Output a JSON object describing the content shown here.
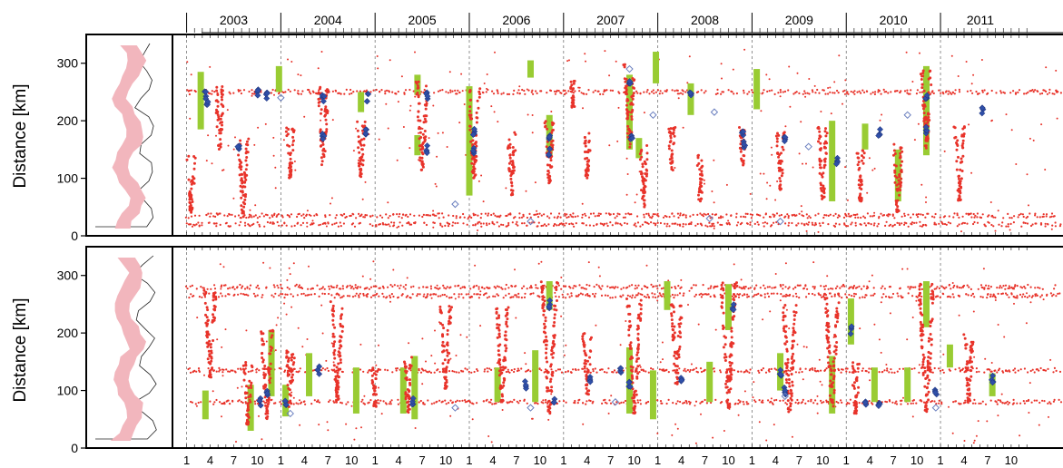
{
  "chart_data": [
    {
      "type": "scatter",
      "panel": "upper",
      "ylabel": "Distance [km]",
      "ylim": [
        0,
        350
      ],
      "yticks": [
        0,
        100,
        200,
        300
      ],
      "x_range_years": [
        2002.85,
        2012.3
      ],
      "years": [
        "2003",
        "2004",
        "2005",
        "2006",
        "2007",
        "2008",
        "2009",
        "2010",
        "2011"
      ],
      "series": [
        {
          "marker": "red-dot",
          "color": "#e8332a",
          "episodes": [
            {
              "t": 2003.05,
              "y0": 40,
              "y1": 140
            },
            {
              "t": 2003.35,
              "y0": 150,
              "y1": 260
            },
            {
              "t": 2003.6,
              "y0": 30,
              "y1": 170
            },
            {
              "t": 2004.1,
              "y0": 100,
              "y1": 190
            },
            {
              "t": 2004.45,
              "y0": 120,
              "y1": 260
            },
            {
              "t": 2004.85,
              "y0": 100,
              "y1": 200
            },
            {
              "t": 2005.5,
              "y0": 110,
              "y1": 270
            },
            {
              "t": 2006.05,
              "y0": 100,
              "y1": 260
            },
            {
              "t": 2006.45,
              "y0": 70,
              "y1": 180
            },
            {
              "t": 2006.85,
              "y0": 90,
              "y1": 200
            },
            {
              "t": 2007.1,
              "y0": 220,
              "y1": 270
            },
            {
              "t": 2007.25,
              "y0": 100,
              "y1": 180
            },
            {
              "t": 2007.7,
              "y0": 150,
              "y1": 300
            },
            {
              "t": 2007.85,
              "y0": 50,
              "y1": 160
            },
            {
              "t": 2008.15,
              "y0": 110,
              "y1": 190
            },
            {
              "t": 2008.45,
              "y0": 60,
              "y1": 140
            },
            {
              "t": 2008.9,
              "y0": 120,
              "y1": 190
            },
            {
              "t": 2009.3,
              "y0": 80,
              "y1": 180
            },
            {
              "t": 2009.75,
              "y0": 60,
              "y1": 190
            },
            {
              "t": 2010.15,
              "y0": 60,
              "y1": 150
            },
            {
              "t": 2010.55,
              "y0": 40,
              "y1": 160
            },
            {
              "t": 2010.85,
              "y0": 150,
              "y1": 290
            },
            {
              "t": 2011.2,
              "y0": 60,
              "y1": 190
            }
          ],
          "background_bands_km": [
            20,
            35,
            250
          ]
        },
        {
          "marker": "blue-diamond",
          "color": "#2f4fa8",
          "points": [
            {
              "t": 2003.2,
              "y": 245
            },
            {
              "t": 2003.22,
              "y": 230
            },
            {
              "t": 2003.55,
              "y": 155
            },
            {
              "t": 2003.75,
              "y": 250
            },
            {
              "t": 2003.85,
              "y": 245
            },
            {
              "t": 2004.45,
              "y": 240
            },
            {
              "t": 2004.45,
              "y": 175
            },
            {
              "t": 2004.9,
              "y": 180
            },
            {
              "t": 2004.92,
              "y": 240
            },
            {
              "t": 2005.55,
              "y": 245
            },
            {
              "t": 2005.55,
              "y": 150
            },
            {
              "t": 2006.05,
              "y": 180
            },
            {
              "t": 2006.05,
              "y": 150
            },
            {
              "t": 2006.85,
              "y": 170
            },
            {
              "t": 2006.85,
              "y": 145
            },
            {
              "t": 2007.7,
              "y": 265
            },
            {
              "t": 2007.72,
              "y": 170
            },
            {
              "t": 2008.35,
              "y": 245
            },
            {
              "t": 2008.9,
              "y": 180
            },
            {
              "t": 2008.92,
              "y": 160
            },
            {
              "t": 2009.35,
              "y": 165
            },
            {
              "t": 2009.9,
              "y": 130
            },
            {
              "t": 2010.35,
              "y": 180
            },
            {
              "t": 2010.85,
              "y": 245
            },
            {
              "t": 2010.85,
              "y": 185
            },
            {
              "t": 2011.45,
              "y": 220
            }
          ]
        },
        {
          "marker": "open-diamond",
          "color": "#6a7fbf",
          "points": [
            {
              "t": 2004.0,
              "y": 240
            },
            {
              "t": 2005.85,
              "y": 55
            },
            {
              "t": 2006.65,
              "y": 25
            },
            {
              "t": 2007.7,
              "y": 290
            },
            {
              "t": 2007.95,
              "y": 210
            },
            {
              "t": 2008.6,
              "y": 215
            },
            {
              "t": 2008.55,
              "y": 30
            },
            {
              "t": 2009.3,
              "y": 25
            },
            {
              "t": 2009.6,
              "y": 155
            },
            {
              "t": 2010.65,
              "y": 210
            }
          ]
        },
        {
          "marker": "green-bar",
          "color": "#99cc33",
          "bars": [
            {
              "t": 2003.15,
              "y0": 185,
              "y1": 285
            },
            {
              "t": 2003.98,
              "y0": 250,
              "y1": 295
            },
            {
              "t": 2004.85,
              "y0": 215,
              "y1": 250
            },
            {
              "t": 2005.45,
              "y0": 245,
              "y1": 280
            },
            {
              "t": 2005.45,
              "y0": 140,
              "y1": 175
            },
            {
              "t": 2006.0,
              "y0": 70,
              "y1": 260
            },
            {
              "t": 2006.65,
              "y0": 275,
              "y1": 305
            },
            {
              "t": 2006.85,
              "y0": 140,
              "y1": 210
            },
            {
              "t": 2007.7,
              "y0": 150,
              "y1": 280
            },
            {
              "t": 2007.8,
              "y0": 135,
              "y1": 170
            },
            {
              "t": 2007.98,
              "y0": 265,
              "y1": 320
            },
            {
              "t": 2008.35,
              "y0": 210,
              "y1": 265
            },
            {
              "t": 2009.05,
              "y0": 220,
              "y1": 290
            },
            {
              "t": 2009.85,
              "y0": 60,
              "y1": 200
            },
            {
              "t": 2010.55,
              "y0": 60,
              "y1": 150
            },
            {
              "t": 2010.85,
              "y0": 140,
              "y1": 295
            },
            {
              "t": 2010.2,
              "y0": 150,
              "y1": 195
            }
          ]
        }
      ]
    },
    {
      "type": "scatter",
      "panel": "lower",
      "ylabel": "Distance [km]",
      "ylim": [
        0,
        350
      ],
      "yticks": [
        0,
        100,
        200,
        300
      ],
      "x_range_years": [
        2002.85,
        2012.3
      ],
      "month_tick_labels": [
        "1",
        "4",
        "7",
        "10"
      ],
      "series": [
        {
          "marker": "red-dot",
          "color": "#e8332a",
          "episodes": [
            {
              "t": 2003.25,
              "y0": 120,
              "y1": 280
            },
            {
              "t": 2003.65,
              "y0": 40,
              "y1": 150
            },
            {
              "t": 2003.85,
              "y0": 50,
              "y1": 210
            },
            {
              "t": 2004.1,
              "y0": 70,
              "y1": 170
            },
            {
              "t": 2004.6,
              "y0": 80,
              "y1": 260
            },
            {
              "t": 2005.0,
              "y0": 70,
              "y1": 140
            },
            {
              "t": 2005.35,
              "y0": 60,
              "y1": 160
            },
            {
              "t": 2005.75,
              "y0": 100,
              "y1": 250
            },
            {
              "t": 2006.35,
              "y0": 80,
              "y1": 250
            },
            {
              "t": 2006.85,
              "y0": 60,
              "y1": 290
            },
            {
              "t": 2007.25,
              "y0": 90,
              "y1": 200
            },
            {
              "t": 2007.75,
              "y0": 60,
              "y1": 260
            },
            {
              "t": 2008.2,
              "y0": 110,
              "y1": 250
            },
            {
              "t": 2008.75,
              "y0": 70,
              "y1": 290
            },
            {
              "t": 2009.4,
              "y0": 60,
              "y1": 250
            },
            {
              "t": 2009.85,
              "y0": 70,
              "y1": 270
            },
            {
              "t": 2010.1,
              "y0": 60,
              "y1": 150
            },
            {
              "t": 2010.85,
              "y0": 60,
              "y1": 290
            },
            {
              "t": 2011.3,
              "y0": 80,
              "y1": 200
            }
          ],
          "background_bands_km": [
            80,
            135,
            265,
            280
          ]
        },
        {
          "marker": "blue-diamond",
          "color": "#2f4fa8",
          "points": [
            {
              "t": 2003.78,
              "y": 80
            },
            {
              "t": 2003.85,
              "y": 95
            },
            {
              "t": 2004.05,
              "y": 75
            },
            {
              "t": 2004.4,
              "y": 135
            },
            {
              "t": 2005.4,
              "y": 80
            },
            {
              "t": 2006.6,
              "y": 110
            },
            {
              "t": 2006.85,
              "y": 250
            },
            {
              "t": 2006.9,
              "y": 80
            },
            {
              "t": 2007.28,
              "y": 120
            },
            {
              "t": 2007.6,
              "y": 135
            },
            {
              "t": 2007.7,
              "y": 110
            },
            {
              "t": 2008.25,
              "y": 115
            },
            {
              "t": 2008.8,
              "y": 245
            },
            {
              "t": 2009.3,
              "y": 130
            },
            {
              "t": 2009.35,
              "y": 100
            },
            {
              "t": 2010.05,
              "y": 205
            },
            {
              "t": 2010.2,
              "y": 80
            },
            {
              "t": 2010.35,
              "y": 75
            },
            {
              "t": 2010.95,
              "y": 100
            },
            {
              "t": 2011.55,
              "y": 120
            }
          ]
        },
        {
          "marker": "open-diamond",
          "color": "#6a7fbf",
          "points": [
            {
              "t": 2004.1,
              "y": 60
            },
            {
              "t": 2005.85,
              "y": 70
            },
            {
              "t": 2006.65,
              "y": 70
            },
            {
              "t": 2007.55,
              "y": 80
            },
            {
              "t": 2009.35,
              "y": 90
            },
            {
              "t": 2010.95,
              "y": 70
            }
          ]
        },
        {
          "marker": "green-bar",
          "color": "#99cc33",
          "bars": [
            {
              "t": 2003.2,
              "y0": 50,
              "y1": 100
            },
            {
              "t": 2003.68,
              "y0": 30,
              "y1": 110
            },
            {
              "t": 2003.9,
              "y0": 90,
              "y1": 205
            },
            {
              "t": 2004.05,
              "y0": 55,
              "y1": 110
            },
            {
              "t": 2004.3,
              "y0": 90,
              "y1": 165
            },
            {
              "t": 2004.8,
              "y0": 60,
              "y1": 140
            },
            {
              "t": 2005.3,
              "y0": 60,
              "y1": 140
            },
            {
              "t": 2005.42,
              "y0": 50,
              "y1": 160
            },
            {
              "t": 2006.3,
              "y0": 80,
              "y1": 140
            },
            {
              "t": 2006.7,
              "y0": 80,
              "y1": 170
            },
            {
              "t": 2006.85,
              "y0": 240,
              "y1": 290
            },
            {
              "t": 2007.7,
              "y0": 60,
              "y1": 175
            },
            {
              "t": 2007.95,
              "y0": 50,
              "y1": 135
            },
            {
              "t": 2008.1,
              "y0": 240,
              "y1": 290
            },
            {
              "t": 2008.55,
              "y0": 80,
              "y1": 150
            },
            {
              "t": 2008.75,
              "y0": 205,
              "y1": 285
            },
            {
              "t": 2009.3,
              "y0": 100,
              "y1": 165
            },
            {
              "t": 2009.85,
              "y0": 60,
              "y1": 160
            },
            {
              "t": 2010.05,
              "y0": 180,
              "y1": 260
            },
            {
              "t": 2010.3,
              "y0": 80,
              "y1": 140
            },
            {
              "t": 2010.65,
              "y0": 80,
              "y1": 140
            },
            {
              "t": 2010.85,
              "y0": 210,
              "y1": 290
            },
            {
              "t": 2011.1,
              "y0": 140,
              "y1": 180
            },
            {
              "t": 2011.55,
              "y0": 90,
              "y1": 130
            }
          ]
        }
      ]
    }
  ],
  "colors": {
    "tremor": "#e8332a",
    "lfe": "#2f4fa8",
    "open_marker": "#6a7fbf",
    "slow_slip_bar": "#99cc33",
    "map_tremor_zone": "#f2b6bd"
  }
}
